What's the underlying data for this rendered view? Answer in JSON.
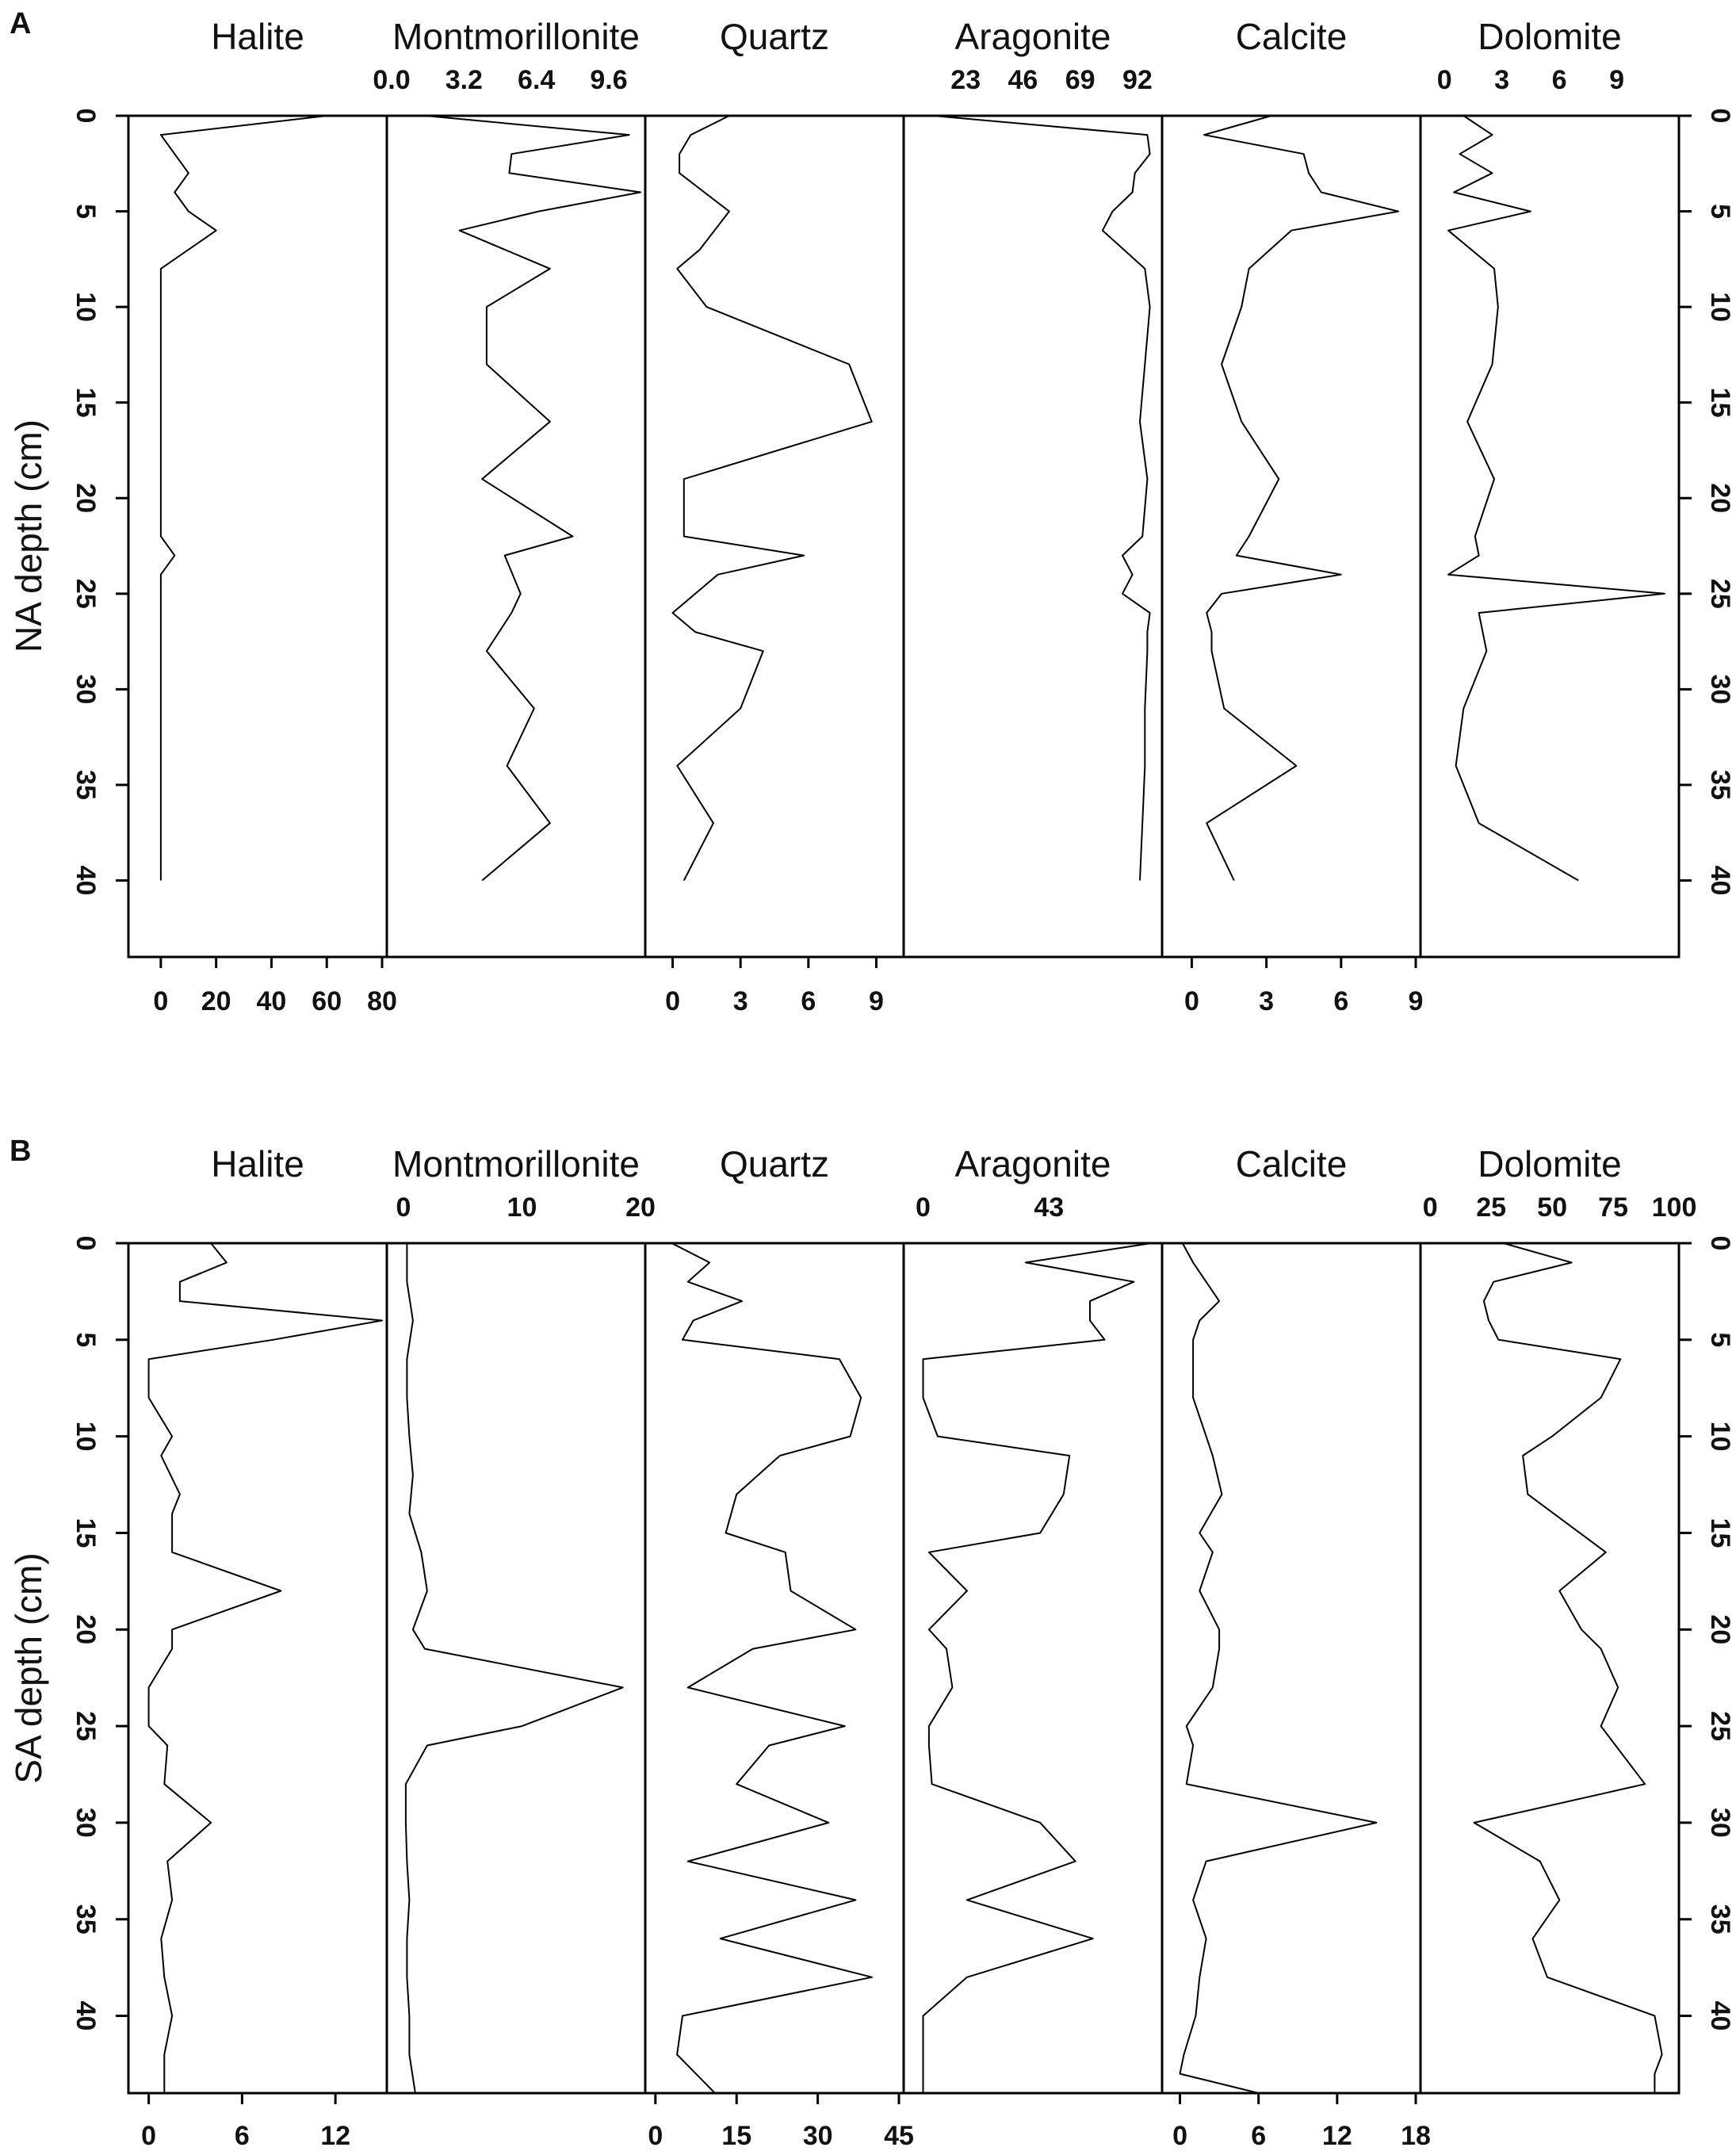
{
  "chart_data": [
    {
      "panel": "A",
      "type": "line",
      "ylabel": "NA depth (cm)",
      "ylim": [
        0,
        44
      ],
      "yticks": [
        0,
        5,
        10,
        15,
        20,
        25,
        30,
        35,
        40
      ],
      "tracks": [
        {
          "name": "Halite",
          "axis": "bottom",
          "xlim": [
            -10,
            80
          ],
          "xticks": [
            "0",
            "20",
            "40",
            "60",
            "80"
          ],
          "xtick_values": [
            0,
            20,
            40,
            60,
            80
          ],
          "depth": [
            0,
            1,
            2,
            3,
            4,
            5,
            6,
            8,
            22,
            23,
            24,
            40
          ],
          "values": [
            60,
            0,
            5,
            10,
            5,
            10,
            20,
            0,
            0,
            5,
            0,
            0
          ]
        },
        {
          "name": "Montmorillonite",
          "axis": "top",
          "xlim": [
            0,
            11
          ],
          "xticks": [
            "0.0",
            "3.2",
            "6.4",
            "9.6"
          ],
          "xtick_values": [
            0,
            3.2,
            6.4,
            9.6
          ],
          "depth": [
            0,
            1,
            2,
            3,
            4,
            5,
            6,
            8,
            10,
            13,
            16,
            19,
            22,
            23,
            25,
            26,
            28,
            31,
            34,
            37,
            40
          ],
          "values": [
            1.5,
            10.5,
            5.3,
            5.2,
            11,
            6.5,
            3,
            7,
            4.2,
            4.2,
            7,
            4,
            8,
            5,
            5.7,
            5.3,
            4.2,
            6.3,
            5.1,
            7,
            4
          ]
        },
        {
          "name": "Quartz",
          "axis": "bottom",
          "xlim": [
            -1,
            10
          ],
          "xticks": [
            "0",
            "3",
            "6",
            "9"
          ],
          "xtick_values": [
            0,
            3,
            6,
            9
          ],
          "depth": [
            0,
            1,
            2,
            3,
            5,
            7,
            8,
            10,
            13,
            16,
            19,
            22,
            23,
            24,
            26,
            27,
            28,
            31,
            34,
            37,
            40
          ],
          "values": [
            2.5,
            0.8,
            0.3,
            0.3,
            2.5,
            1.2,
            0.2,
            1.5,
            7.8,
            8.8,
            0.5,
            0.5,
            5.8,
            2,
            0,
            1,
            4,
            3,
            0.2,
            1.8,
            0.5
          ]
        },
        {
          "name": "Aragonite",
          "axis": "top",
          "xlim": [
            0,
            100
          ],
          "xticks": [
            "23",
            "46",
            "69",
            "92"
          ],
          "xtick_values": [
            23,
            46,
            69,
            92
          ],
          "depth": [
            0,
            1,
            2,
            3,
            4,
            5,
            6,
            8,
            10,
            13,
            16,
            19,
            22,
            23,
            24,
            25,
            26,
            27,
            28,
            31,
            34,
            37,
            40
          ],
          "values": [
            10,
            96,
            97,
            91,
            90,
            82,
            78,
            95,
            97,
            95,
            93,
            96,
            94,
            86,
            90,
            86,
            97,
            96,
            96,
            95,
            95,
            94,
            93
          ]
        },
        {
          "name": "Calcite",
          "axis": "bottom",
          "xlim": [
            -1,
            9
          ],
          "xticks": [
            "0",
            "3",
            "6",
            "9"
          ],
          "xtick_values": [
            0,
            3,
            6,
            9
          ],
          "depth": [
            0,
            1,
            2,
            3,
            4,
            5,
            6,
            8,
            10,
            13,
            16,
            19,
            22,
            23,
            24,
            25,
            26,
            27,
            28,
            31,
            34,
            37,
            40
          ],
          "values": [
            3.2,
            0.5,
            4.5,
            4.7,
            5.2,
            8.3,
            4,
            2.3,
            2,
            1.2,
            2,
            3.5,
            2.3,
            1.8,
            6,
            1.2,
            0.6,
            0.8,
            0.8,
            1.3,
            4.2,
            0.6,
            1.7
          ]
        },
        {
          "name": "Dolomite",
          "axis": "top",
          "xlim": [
            -1,
            12
          ],
          "xticks": [
            "0",
            "3",
            "6",
            "9"
          ],
          "xtick_values": [
            0,
            3,
            6,
            9
          ],
          "depth": [
            0,
            1,
            2,
            3,
            4,
            5,
            6,
            8,
            10,
            13,
            16,
            19,
            22,
            23,
            24,
            25,
            26,
            28,
            31,
            34,
            37,
            40
          ],
          "values": [
            1,
            2.5,
            0.8,
            2.5,
            0.5,
            4.5,
            0.2,
            2.6,
            2.8,
            2.5,
            1.2,
            2.6,
            1.6,
            1.8,
            0.2,
            11.5,
            1.8,
            2.2,
            1,
            0.6,
            1.8,
            7
          ]
        }
      ]
    },
    {
      "panel": "B",
      "type": "line",
      "ylabel": "SA depth (cm)",
      "ylim": [
        0,
        44
      ],
      "yticks": [
        0,
        5,
        10,
        15,
        20,
        25,
        30,
        35,
        40
      ],
      "tracks": [
        {
          "name": "Halite",
          "axis": "bottom",
          "xlim": [
            -1,
            15
          ],
          "xticks": [
            "0",
            "6",
            "12"
          ],
          "xtick_values": [
            0,
            6,
            12
          ],
          "depth": [
            0,
            1,
            2,
            3,
            4,
            5,
            6,
            8,
            10,
            11,
            13,
            14,
            16,
            18,
            20,
            21,
            23,
            25,
            26,
            28,
            30,
            32,
            34,
            36,
            38,
            40,
            42,
            44
          ],
          "values": [
            4,
            5,
            2,
            2,
            15,
            8,
            0,
            0,
            1.5,
            0.8,
            2,
            1.5,
            1.5,
            8.5,
            1.5,
            1.5,
            0,
            0,
            1.2,
            1,
            4,
            1.2,
            1.5,
            0.8,
            1,
            1.5,
            1,
            1
          ]
        },
        {
          "name": "Montmorillonite",
          "axis": "top",
          "xlim": [
            -1,
            20
          ],
          "xticks": [
            "0",
            "10",
            "20"
          ],
          "xtick_values": [
            0,
            10,
            20
          ],
          "depth": [
            0,
            2,
            4,
            6,
            8,
            10,
            12,
            14,
            16,
            18,
            20,
            21,
            23,
            25,
            26,
            28,
            30,
            32,
            34,
            36,
            38,
            40,
            42,
            44
          ],
          "values": [
            0.3,
            0.3,
            0.8,
            0.3,
            0.3,
            0.5,
            0.8,
            0.5,
            1.5,
            2,
            0.8,
            1.8,
            18.5,
            10,
            2,
            0.2,
            0.2,
            0.3,
            0.5,
            0.3,
            0.3,
            0.5,
            0.5,
            1
          ]
        },
        {
          "name": "Quartz",
          "axis": "bottom",
          "xlim": [
            -1,
            45
          ],
          "xticks": [
            "0",
            "15",
            "30",
            "45"
          ],
          "xtick_values": [
            0,
            15,
            30,
            45
          ],
          "depth": [
            0,
            1,
            2,
            3,
            4,
            5,
            6,
            8,
            10,
            11,
            13,
            15,
            16,
            18,
            20,
            21,
            23,
            25,
            26,
            28,
            30,
            32,
            34,
            36,
            38,
            40,
            42,
            44
          ],
          "values": [
            3,
            10,
            6,
            16,
            7,
            5,
            34,
            38,
            36,
            23,
            15,
            13,
            24,
            25,
            37,
            18,
            6,
            35,
            21,
            15,
            32,
            6,
            37,
            12,
            40,
            5,
            4,
            11
          ]
        },
        {
          "name": "Aragonite",
          "axis": "top",
          "xlim": [
            -5,
            80
          ],
          "xticks": [
            "0",
            "43"
          ],
          "xtick_values": [
            0,
            43
          ],
          "depth": [
            0,
            1,
            2,
            3,
            4,
            5,
            6,
            8,
            10,
            11,
            13,
            15,
            16,
            18,
            20,
            21,
            23,
            25,
            26,
            28,
            30,
            32,
            34,
            36,
            38,
            40,
            44
          ],
          "values": [
            78,
            35,
            72,
            57,
            57,
            62,
            0,
            0,
            5,
            50,
            48,
            40,
            2,
            15,
            2,
            8,
            10,
            2,
            2,
            3,
            40,
            52,
            15,
            58,
            15,
            0,
            0
          ]
        },
        {
          "name": "Calcite",
          "axis": "bottom",
          "xlim": [
            -1,
            18
          ],
          "xticks": [
            "0",
            "6",
            "12",
            "18"
          ],
          "xtick_values": [
            0,
            6,
            12,
            18
          ],
          "depth": [
            0,
            1,
            2,
            3,
            4,
            5,
            6,
            8,
            10,
            11,
            13,
            15,
            16,
            18,
            20,
            21,
            23,
            25,
            26,
            28,
            30,
            32,
            34,
            36,
            38,
            40,
            42,
            43,
            44
          ],
          "values": [
            0.2,
            1,
            2,
            3,
            1.5,
            1,
            1,
            1,
            2,
            2.5,
            3.2,
            1.5,
            2.5,
            1.5,
            3,
            3,
            2.5,
            0.5,
            1,
            0.5,
            15,
            2,
            1,
            2,
            1.5,
            1.2,
            0.3,
            0,
            6
          ]
        },
        {
          "name": "Dolomite",
          "axis": "top",
          "xlim": [
            -2,
            100
          ],
          "xticks": [
            "0",
            "25",
            "50",
            "75",
            "100"
          ],
          "xtick_values": [
            0,
            25,
            50,
            75,
            100
          ],
          "depth": [
            0,
            1,
            2,
            3,
            4,
            5,
            6,
            8,
            10,
            11,
            13,
            16,
            18,
            20,
            21,
            23,
            25,
            26,
            28,
            30,
            32,
            34,
            36,
            38,
            40,
            42,
            43,
            44
          ],
          "values": [
            30,
            58,
            26,
            22,
            24,
            28,
            78,
            70,
            50,
            38,
            40,
            72,
            53,
            62,
            70,
            77,
            70,
            76,
            88,
            18,
            45,
            53,
            42,
            48,
            92,
            95,
            92,
            92
          ]
        }
      ]
    }
  ]
}
